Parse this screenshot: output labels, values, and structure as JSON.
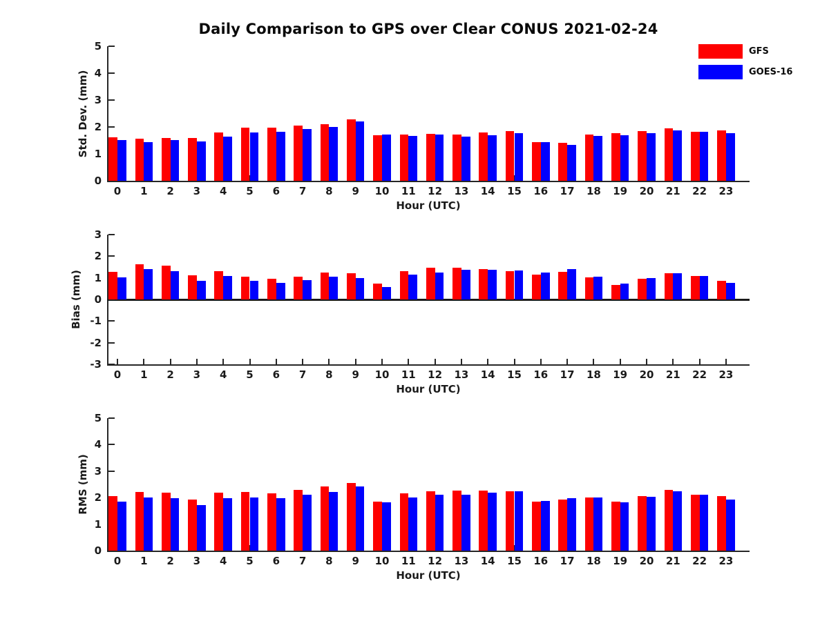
{
  "title": "Daily Comparison to GPS over Clear CONUS 2021-02-24",
  "colors": {
    "gfs": "#fe0000",
    "goes16": "#0000fe",
    "axis": "#262626",
    "text": "#1a1a1a"
  },
  "legend": {
    "position": "top-right",
    "items": [
      {
        "label": "GFS",
        "color": "#fe0000"
      },
      {
        "label": "GOES-16",
        "color": "#0000fe"
      }
    ]
  },
  "chart_data": [
    {
      "type": "bar",
      "title": "",
      "ylabel": "Std. Dev. (mm)",
      "xlabel": "Hour (UTC)",
      "ylim": [
        0,
        5
      ],
      "yticks": [
        0,
        1,
        2,
        3,
        4,
        5
      ],
      "grid": false,
      "categories": [
        "0",
        "1",
        "2",
        "3",
        "4",
        "5",
        "6",
        "7",
        "8",
        "9",
        "10",
        "11",
        "12",
        "13",
        "14",
        "15",
        "16",
        "17",
        "18",
        "19",
        "20",
        "21",
        "22",
        "23"
      ],
      "series": [
        {
          "name": "GFS",
          "color": "#fe0000",
          "values": [
            1.62,
            1.57,
            1.6,
            1.59,
            1.8,
            1.97,
            1.97,
            2.05,
            2.1,
            2.27,
            1.69,
            1.73,
            1.75,
            1.73,
            1.8,
            1.85,
            1.43,
            1.4,
            1.72,
            1.77,
            1.84,
            1.96,
            1.83,
            1.87
          ]
        },
        {
          "name": "GOES-16",
          "color": "#0000fe",
          "values": [
            1.51,
            1.44,
            1.52,
            1.47,
            1.65,
            1.8,
            1.82,
            1.92,
            2.0,
            2.21,
            1.73,
            1.67,
            1.71,
            1.64,
            1.7,
            1.77,
            1.44,
            1.34,
            1.66,
            1.7,
            1.77,
            1.87,
            1.81,
            1.77
          ]
        }
      ]
    },
    {
      "type": "bar",
      "title": "",
      "ylabel": "Bias (mm)",
      "xlabel": "Hour (UTC)",
      "ylim": [
        -3,
        3
      ],
      "yticks": [
        -3,
        -2,
        -1,
        0,
        1,
        2,
        3
      ],
      "grid": false,
      "categories": [
        "0",
        "1",
        "2",
        "3",
        "4",
        "5",
        "6",
        "7",
        "8",
        "9",
        "10",
        "11",
        "12",
        "13",
        "14",
        "15",
        "16",
        "17",
        "18",
        "19",
        "20",
        "21",
        "22",
        "23"
      ],
      "series": [
        {
          "name": "GFS",
          "color": "#fe0000",
          "values": [
            1.28,
            1.62,
            1.57,
            1.12,
            1.3,
            1.04,
            0.95,
            1.06,
            1.23,
            1.2,
            0.73,
            1.32,
            1.46,
            1.48,
            1.39,
            1.31,
            1.15,
            1.28,
            1.01,
            0.68,
            0.95,
            1.2,
            1.1,
            0.86
          ]
        },
        {
          "name": "GOES-16",
          "color": "#0000fe",
          "values": [
            1.03,
            1.41,
            1.31,
            0.87,
            1.1,
            0.86,
            0.77,
            0.9,
            1.05,
            1.0,
            0.56,
            1.16,
            1.26,
            1.36,
            1.36,
            1.34,
            1.24,
            1.42,
            1.06,
            0.74,
            0.99,
            1.21,
            1.07,
            0.77
          ]
        }
      ]
    },
    {
      "type": "bar",
      "title": "",
      "ylabel": "RMS (mm)",
      "xlabel": "Hour (UTC)",
      "ylim": [
        0,
        5
      ],
      "yticks": [
        0,
        1,
        2,
        3,
        4,
        5
      ],
      "grid": false,
      "categories": [
        "0",
        "1",
        "2",
        "3",
        "4",
        "5",
        "6",
        "7",
        "8",
        "9",
        "10",
        "11",
        "12",
        "13",
        "14",
        "15",
        "16",
        "17",
        "18",
        "19",
        "20",
        "21",
        "22",
        "23"
      ],
      "series": [
        {
          "name": "GFS",
          "color": "#fe0000",
          "values": [
            2.05,
            2.22,
            2.2,
            1.93,
            2.2,
            2.22,
            2.17,
            2.3,
            2.43,
            2.55,
            1.86,
            2.15,
            2.25,
            2.27,
            2.26,
            2.25,
            1.84,
            1.92,
            2.0,
            1.86,
            2.07,
            2.28,
            2.12,
            2.05
          ]
        },
        {
          "name": "GOES-16",
          "color": "#0000fe",
          "values": [
            1.85,
            2.0,
            1.99,
            1.72,
            1.97,
            2.0,
            1.97,
            2.12,
            2.22,
            2.41,
            1.82,
            2.0,
            2.1,
            2.12,
            2.18,
            2.23,
            1.88,
            1.98,
            2.0,
            1.83,
            2.03,
            2.23,
            2.11,
            1.92
          ]
        }
      ]
    }
  ]
}
